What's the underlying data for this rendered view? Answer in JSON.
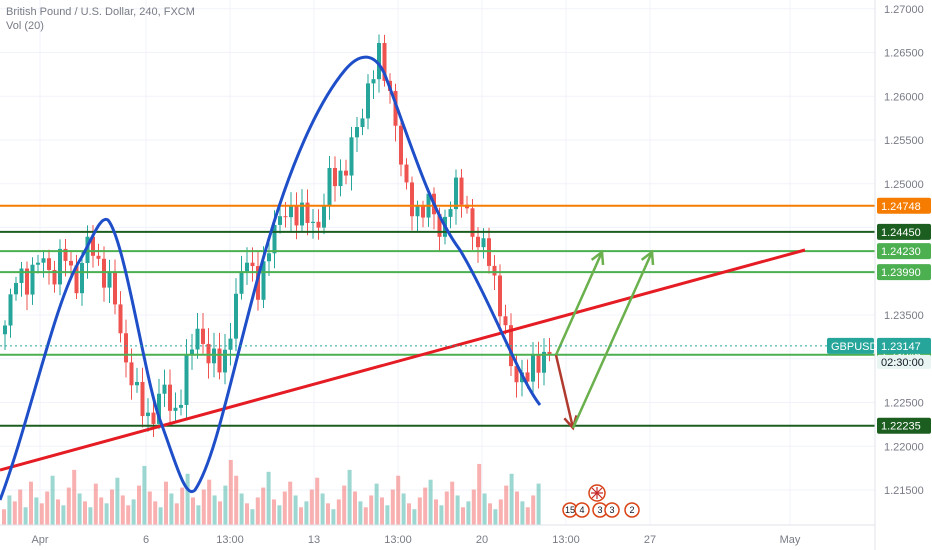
{
  "header": {
    "symbol_title": "British Pound / U.S. Dollar, 240, FXCM",
    "volume_label": "Vol (20)"
  },
  "colors": {
    "up": "#26a69a",
    "down": "#ef5350",
    "orange_line": "#f57c00",
    "dark_green_line": "#1b5e20",
    "green_line": "#4caf50",
    "trend_line": "#e51c23",
    "curve": "#1e4fc9",
    "arrow_green": "#6ab04c",
    "arrow_red": "#b03a2e"
  },
  "chart_data": {
    "type": "candlestick",
    "ylim": [
      1.211,
      1.271
    ],
    "y_ticks": [
      "1.27000",
      "1.26500",
      "1.26000",
      "1.25500",
      "1.25000",
      "1.24500",
      "1.24000",
      "1.23500",
      "1.23000",
      "1.22500",
      "1.22000",
      "1.21500"
    ],
    "x_ticks": [
      "Apr",
      "6",
      "13:00",
      "13",
      "13:00",
      "20",
      "13:00",
      "27",
      "May"
    ],
    "horizontal_levels": [
      {
        "label": "1.24748",
        "value": 1.24748,
        "color": "#f57c00",
        "text_color": "#ffffff"
      },
      {
        "label": "1.24450",
        "value": 1.2445,
        "color": "#1b5e20",
        "text_color": "#ffffff"
      },
      {
        "label": "1.24230",
        "value": 1.2423,
        "color": "#4caf50",
        "text_color": "#ffffff"
      },
      {
        "label": "1.23990",
        "value": 1.2399,
        "color": "#4caf50",
        "text_color": "#ffffff"
      },
      {
        "label": "1.23046",
        "value": 1.23046,
        "color": "#4caf50",
        "text_color": "#ffffff"
      },
      {
        "label": "1.22235",
        "value": 1.22235,
        "color": "#1b5e20",
        "text_color": "#ffffff"
      }
    ],
    "price_tag": {
      "symbol": "GBPUSD",
      "price": "1.23147",
      "countdown": "02:30:00",
      "value": 1.23147
    },
    "event_badges": [
      "15",
      "4",
      "3",
      "3",
      "2"
    ],
    "price_path": [
      1.233,
      1.241,
      1.2375,
      1.243,
      1.2385,
      1.2425,
      1.238,
      1.244,
      1.24,
      1.237,
      1.23,
      1.225,
      1.223,
      1.2265,
      1.2235,
      1.229,
      1.2335,
      1.23,
      1.2285,
      1.237,
      1.241,
      1.2385,
      1.243,
      1.248,
      1.2455,
      1.247,
      1.2445,
      1.252,
      1.2505,
      1.256,
      1.261,
      1.2645,
      1.26,
      1.249,
      1.247,
      1.2475,
      1.2445,
      1.249,
      1.248,
      1.243,
      1.2415,
      1.236,
      1.227,
      1.229,
      1.2285,
      1.2315
    ],
    "volume": [
      8,
      15,
      12,
      18,
      9,
      22,
      14,
      11,
      17,
      25,
      13,
      10,
      19,
      28,
      16,
      12,
      9,
      21,
      14,
      11,
      18,
      24,
      15,
      10,
      13,
      20,
      30,
      17,
      12,
      9,
      22,
      16,
      11,
      19,
      26,
      14,
      10,
      18,
      23,
      15,
      12,
      20,
      33,
      25,
      16,
      11,
      8,
      14,
      19,
      27,
      13,
      10,
      17,
      22,
      15,
      9,
      12,
      18,
      24,
      16,
      11,
      8,
      13,
      20,
      28,
      17,
      12,
      9,
      15,
      21,
      14,
      10,
      18,
      25,
      16,
      11,
      8,
      14,
      19,
      23,
      13,
      10,
      17,
      22,
      15,
      9,
      12,
      18,
      31,
      16,
      11,
      8,
      13,
      20,
      26,
      17,
      12,
      9,
      15,
      21
    ]
  }
}
